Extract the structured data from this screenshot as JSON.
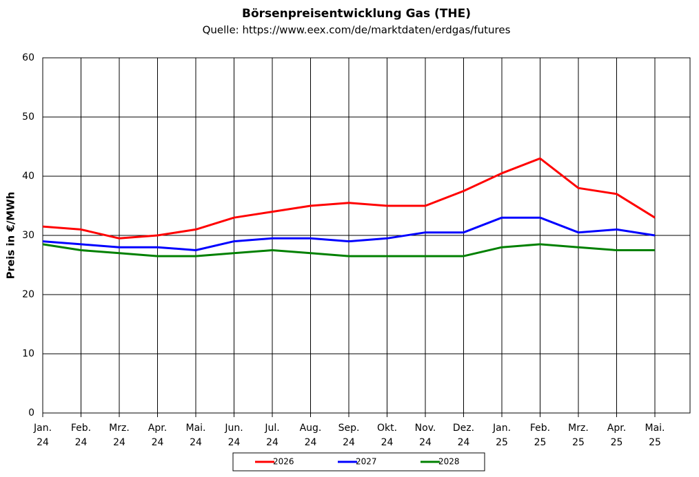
{
  "chart_data": {
    "type": "line",
    "title": "Börsenpreisentwicklung Gas (THE)",
    "subtitle": "Quelle: https://www.eex.com/de/marktdaten/erdgas/futures",
    "y_label": "Preis in €/MWh",
    "x": [
      "Jan. 24",
      "Feb. 24",
      "Mrz. 24",
      "Apr. 24",
      "Mai. 24",
      "Jun. 24",
      "Jul. 24",
      "Aug. 24",
      "Sep. 24",
      "Okt. 24",
      "Nov. 24",
      "Dez. 24",
      "Jan. 25",
      "Feb. 25",
      "Mrz. 25",
      "Apr. 25",
      "Mai. 25"
    ],
    "series": [
      {
        "name": "2026",
        "color": "#ff0000",
        "values": [
          31.5,
          31,
          29.5,
          30,
          31,
          33,
          34,
          35,
          35.5,
          35,
          35,
          37.5,
          40.5,
          43,
          38,
          37,
          33
        ]
      },
      {
        "name": "2027",
        "color": "#0000ff",
        "values": [
          29,
          28.5,
          28,
          28,
          27.5,
          29,
          29.5,
          29.5,
          29,
          29.5,
          30.5,
          30.5,
          33,
          33,
          30.5,
          31,
          30
        ]
      },
      {
        "name": "2028",
        "color": "#008000",
        "values": [
          28.5,
          27.5,
          27,
          26.5,
          26.5,
          27,
          27.5,
          27,
          26.5,
          26.5,
          26.5,
          26.5,
          28,
          28.5,
          28,
          27.5,
          27.5
        ]
      }
    ],
    "ylim": [
      0,
      60
    ],
    "yticks": [
      0,
      10,
      20,
      30,
      40,
      50,
      60
    ],
    "grid": true,
    "legend": "bottom"
  }
}
